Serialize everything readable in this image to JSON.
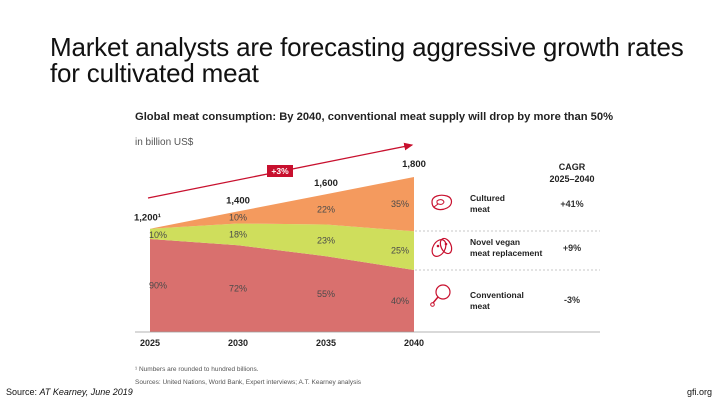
{
  "slide": {
    "title_line1": "Market analysts are forecasting aggressive growth rates",
    "title_line2": "for cultivated meat"
  },
  "chart": {
    "title": "Global meat consumption: By 2040, conventional meat supply will drop by more than 50%",
    "unit": "in billion US$",
    "growth_badge": "+3%",
    "cagr_header_line1": "CAGR",
    "cagr_header_line2": "2025–2040",
    "total_labels": [
      "1,200¹",
      "1,400",
      "1,600",
      "1,800"
    ]
  },
  "legend": [
    {
      "line1": "Cultured",
      "line2": "meat",
      "cagr": "+41%",
      "icon": "steak-icon"
    },
    {
      "line1": "Novel vegan",
      "line2": "meat replacement",
      "cagr": "+9%",
      "icon": "vegan-beans-icon"
    },
    {
      "line1": "Conventional",
      "line2": "meat",
      "cagr": "-3%",
      "icon": "drumstick-icon"
    }
  ],
  "chart_data": {
    "type": "area",
    "stacked": true,
    "title": "Global meat consumption: By 2040, conventional meat supply will drop by more than 50%",
    "ylabel": "in billion US$",
    "x": [
      "2025",
      "2030",
      "2035",
      "2040"
    ],
    "totals": [
      1200,
      1400,
      1600,
      1800
    ],
    "series": [
      {
        "name": "Conventional meat",
        "color": "#D9706E",
        "shares": [
          90,
          72,
          55,
          40
        ],
        "labels": [
          "90%",
          "72%",
          "55%",
          "40%"
        ]
      },
      {
        "name": "Novel vegan meat replacement",
        "color": "#CFDE5C",
        "shares": [
          10,
          18,
          23,
          25
        ],
        "labels": [
          "10%",
          "18%",
          "23%",
          "25%"
        ]
      },
      {
        "name": "Cultured meat",
        "color": "#F49A5E",
        "shares": [
          0,
          10,
          22,
          35
        ],
        "labels": [
          "",
          "10%",
          "22%",
          "35%"
        ]
      }
    ],
    "ylim": [
      0,
      1800
    ]
  },
  "footnotes": {
    "note1": "¹ Numbers are rounded to hundred billions.",
    "note2": "Sources: United Nations, World Bank, Expert interviews; A.T. Kearney analysis"
  },
  "footer": {
    "source_label": "Source: ",
    "source_ref": "AT Kearney, June 2019",
    "site": "gfi.org"
  },
  "colors": {
    "accent_red": "#C8102E",
    "divider": "#b5b5b5"
  }
}
